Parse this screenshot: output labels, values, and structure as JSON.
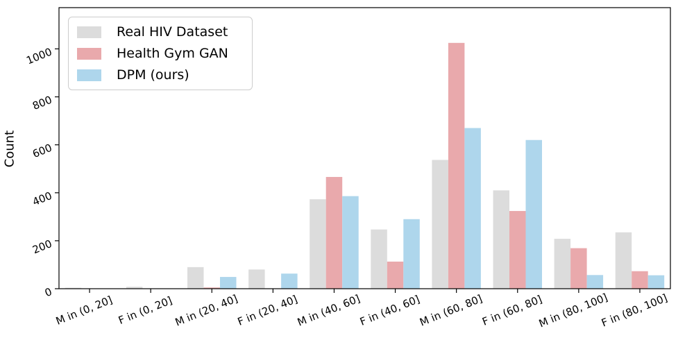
{
  "chart_data": {
    "type": "bar",
    "title": "",
    "xlabel": "",
    "ylabel": "Count",
    "categories": [
      "M in (0, 20]",
      "F in (0, 20]",
      "M in (20, 40]",
      "F in (20, 40]",
      "M in (40, 60]",
      "F in (40, 60]",
      "M in (60, 80]",
      "F in (60, 80]",
      "M in (80, 100]",
      "F in (80, 100]"
    ],
    "series": [
      {
        "name": "Real HIV Dataset",
        "color": "#dcdcdc",
        "values": [
          4,
          8,
          90,
          80,
          373,
          247,
          537,
          410,
          208,
          235
        ]
      },
      {
        "name": "Health Gym GAN",
        "color": "#e9a9ac",
        "values": [
          0,
          0,
          5,
          0,
          466,
          113,
          1025,
          324,
          169,
          73
        ]
      },
      {
        "name": "DPM (ours)",
        "color": "#aed6ec",
        "values": [
          0,
          0,
          49,
          63,
          386,
          290,
          670,
          620,
          57,
          56
        ]
      }
    ],
    "yticks": [
      0,
      200,
      400,
      600,
      800,
      1000
    ],
    "ylim": [
      0,
      1172
    ],
    "grid": false,
    "legend_position": "upper left",
    "tick_label_rotation_deg": 22,
    "axis_color": "#000000"
  }
}
